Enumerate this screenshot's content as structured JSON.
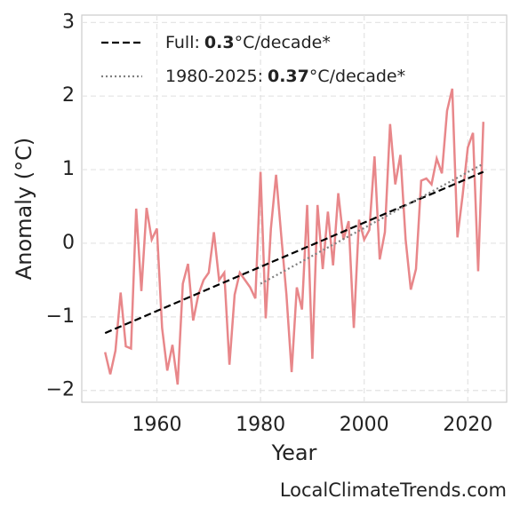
{
  "chart_data": {
    "type": "line",
    "x_label": "Year",
    "y_label": "Anomaly (°C)",
    "source": "LocalClimateTrends.com",
    "xlim": [
      1945.5,
      2027.5
    ],
    "xticks": [
      1960,
      1980,
      2000,
      2020
    ],
    "ylim": [
      -2.16,
      3.1
    ],
    "yticks": [
      {
        "value": -2,
        "label": "−2"
      },
      {
        "value": -1,
        "label": "−1"
      },
      0,
      1,
      2,
      3
    ],
    "grid": true,
    "legend": "upper left",
    "x": [
      1950,
      1951,
      1952,
      1953,
      1954,
      1955,
      1956,
      1957,
      1958,
      1959,
      1960,
      1961,
      1962,
      1963,
      1964,
      1965,
      1966,
      1967,
      1968,
      1969,
      1970,
      1971,
      1972,
      1973,
      1974,
      1975,
      1976,
      1977,
      1978,
      1979,
      1980,
      1981,
      1982,
      1983,
      1984,
      1985,
      1986,
      1987,
      1988,
      1989,
      1990,
      1991,
      1992,
      1993,
      1994,
      1995,
      1996,
      1997,
      1998,
      1999,
      2000,
      2001,
      2002,
      2003,
      2004,
      2005,
      2006,
      2007,
      2008,
      2009,
      2010,
      2011,
      2012,
      2013,
      2014,
      2015,
      2016,
      2017,
      2018,
      2019,
      2020,
      2021,
      2022,
      2023
    ],
    "values": [
      -1.48,
      -1.78,
      -1.46,
      -0.67,
      -1.4,
      -1.43,
      0.47,
      -0.65,
      0.48,
      0.05,
      0.2,
      -1.15,
      -1.73,
      -1.38,
      -1.92,
      -0.55,
      -0.28,
      -1.05,
      -0.7,
      -0.5,
      -0.4,
      0.15,
      -0.5,
      -0.4,
      -1.65,
      -0.7,
      -0.4,
      -0.5,
      -0.6,
      -0.75,
      0.97,
      -1.02,
      0.2,
      0.93,
      0.1,
      -0.7,
      -1.75,
      -0.6,
      -0.9,
      0.52,
      -1.57,
      0.52,
      -0.35,
      0.43,
      -0.3,
      0.68,
      0.05,
      0.3,
      -1.15,
      0.32,
      0.05,
      0.18,
      1.18,
      -0.22,
      0.15,
      1.62,
      0.8,
      1.2,
      0.05,
      -0.63,
      -0.35,
      0.85,
      0.88,
      0.8,
      1.15,
      0.95,
      1.8,
      2.1,
      0.08,
      0.65,
      1.3,
      1.5,
      -0.38,
      1.65
    ],
    "color": "#e8878a",
    "trends": [
      {
        "name": "Full:",
        "rate": 0.3,
        "unit": "°C/decade*",
        "color": "#000000",
        "style": "dashed",
        "x": [
          1950,
          2023
        ],
        "values": [
          -1.22,
          0.97
        ]
      },
      {
        "name": "1980-2025:",
        "rate": 0.37,
        "unit": "°C/decade*",
        "color": "#808080",
        "style": "dotted",
        "x": [
          1980,
          2023
        ],
        "values": [
          -0.55,
          1.08
        ]
      }
    ]
  }
}
